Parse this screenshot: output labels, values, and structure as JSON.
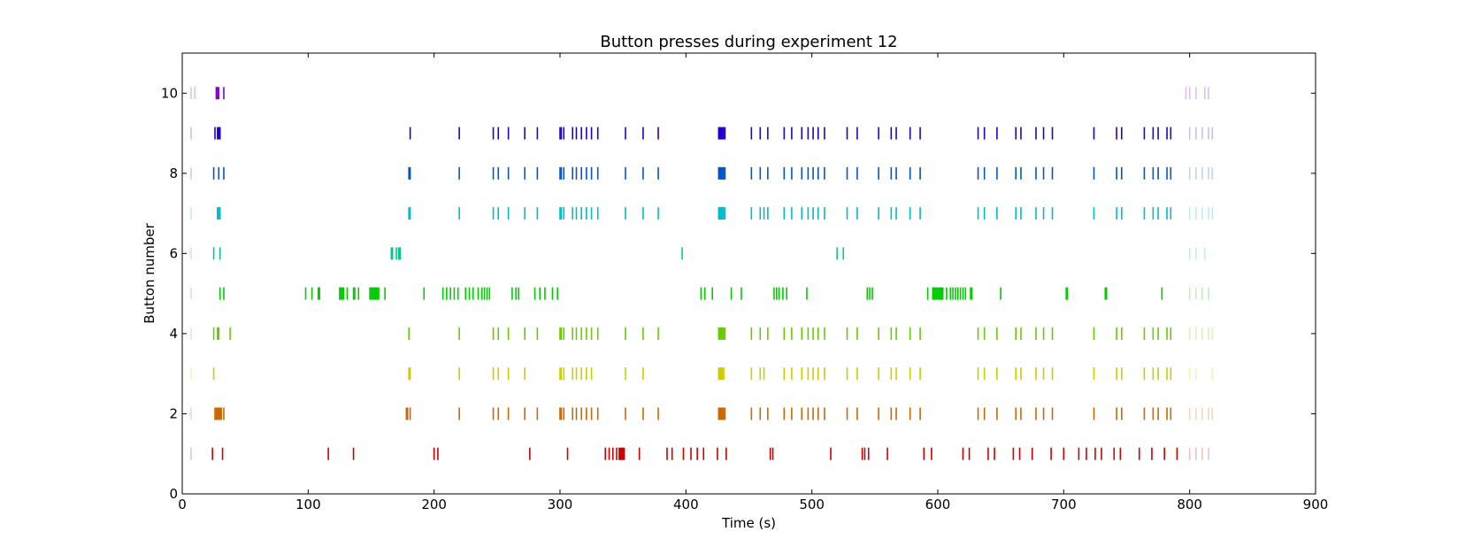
{
  "chart_data": {
    "type": "event_raster",
    "title": "Button presses during experiment 12",
    "xlabel": "Time (s)",
    "ylabel": "Button number",
    "xlim": [
      0,
      900
    ],
    "ylim": [
      0,
      11
    ],
    "xticks": [
      0,
      100,
      200,
      300,
      400,
      500,
      600,
      700,
      800,
      900
    ],
    "yticks": [
      0,
      2,
      4,
      6,
      8,
      10
    ],
    "grid": false,
    "series": [
      {
        "button": 1,
        "color": "#cc0000",
        "times": [
          7,
          24,
          32,
          116,
          136,
          200,
          203,
          276,
          306,
          336,
          339,
          342,
          345,
          347,
          348,
          349,
          350,
          351,
          363,
          385,
          389,
          398,
          404,
          409,
          414,
          425,
          432,
          467,
          469,
          515,
          540,
          542,
          545,
          560,
          589,
          595,
          620,
          625,
          640,
          645,
          660,
          665,
          675,
          690,
          700,
          712,
          718,
          725,
          730,
          740,
          745,
          760,
          770,
          780,
          790,
          800,
          805,
          810,
          815
        ]
      },
      {
        "button": 2,
        "color": "#cc6600",
        "times": [
          7,
          26,
          27,
          28,
          29,
          30,
          31,
          33,
          178,
          179,
          181,
          220,
          247,
          251,
          259,
          272,
          282,
          300,
          301,
          303,
          310,
          313,
          317,
          321,
          325,
          330,
          352,
          366,
          378,
          426,
          427,
          428,
          429,
          430,
          431,
          452,
          459,
          465,
          478,
          484,
          492,
          497,
          501,
          505,
          510,
          528,
          536,
          553,
          563,
          567,
          578,
          586,
          632,
          637,
          647,
          662,
          666,
          678,
          684,
          691,
          724,
          742,
          746,
          764,
          771,
          775,
          782,
          785,
          800,
          805,
          810,
          815,
          818
        ]
      },
      {
        "button": 3,
        "color": "#cccc00",
        "times": [
          7,
          25,
          180,
          181,
          220,
          247,
          251,
          259,
          272,
          300,
          301,
          303,
          310,
          313,
          317,
          321,
          325,
          352,
          366,
          426,
          427,
          428,
          429,
          430,
          452,
          459,
          462,
          478,
          484,
          492,
          497,
          501,
          505,
          510,
          528,
          536,
          553,
          563,
          567,
          578,
          586,
          632,
          637,
          647,
          662,
          666,
          678,
          684,
          691,
          724,
          742,
          746,
          764,
          771,
          775,
          782,
          785,
          800,
          805,
          818
        ]
      },
      {
        "button": 4,
        "color": "#66cc00",
        "times": [
          7,
          25,
          28,
          29,
          38,
          180,
          220,
          247,
          251,
          259,
          272,
          282,
          300,
          301,
          303,
          310,
          313,
          317,
          321,
          325,
          330,
          352,
          366,
          378,
          426,
          427,
          428,
          429,
          430,
          431,
          452,
          459,
          465,
          478,
          484,
          492,
          497,
          501,
          505,
          510,
          528,
          536,
          553,
          563,
          567,
          578,
          586,
          632,
          637,
          647,
          662,
          666,
          678,
          684,
          691,
          724,
          742,
          746,
          764,
          771,
          775,
          782,
          785,
          800,
          805,
          810,
          815,
          818
        ]
      },
      {
        "button": 5,
        "color": "#00cc00",
        "times": [
          7,
          30,
          33,
          98,
          103,
          108,
          109,
          125,
          126,
          127,
          128,
          131,
          136,
          137,
          140,
          149,
          150,
          151,
          152,
          153,
          154,
          155,
          156,
          161,
          192,
          207,
          210,
          213,
          216,
          219,
          225,
          228,
          231,
          235,
          238,
          240,
          242,
          244,
          262,
          265,
          267,
          280,
          284,
          288,
          294,
          298,
          412,
          415,
          421,
          436,
          444,
          470,
          472,
          474,
          477,
          480,
          496,
          544,
          546,
          548,
          592,
          596,
          597,
          598,
          599,
          600,
          601,
          602,
          603,
          604,
          607,
          610,
          612,
          614,
          616,
          618,
          620,
          622,
          626,
          627,
          650,
          702,
          703,
          733,
          734,
          778,
          800,
          805,
          810,
          815
        ]
      },
      {
        "button": 6,
        "color": "#00cc88",
        "times": [
          7,
          25,
          30,
          166,
          167,
          170,
          172,
          173,
          397,
          520,
          525,
          800,
          805,
          812
        ]
      },
      {
        "button": 7,
        "color": "#00bbcc",
        "times": [
          7,
          28,
          29,
          30,
          180,
          181,
          220,
          247,
          251,
          259,
          272,
          282,
          300,
          301,
          303,
          310,
          313,
          317,
          321,
          325,
          330,
          352,
          366,
          378,
          426,
          427,
          428,
          429,
          430,
          431,
          452,
          459,
          462,
          465,
          478,
          484,
          492,
          497,
          501,
          505,
          510,
          528,
          536,
          553,
          563,
          567,
          578,
          586,
          632,
          637,
          647,
          662,
          666,
          678,
          684,
          691,
          724,
          742,
          746,
          764,
          771,
          775,
          782,
          785,
          800,
          805,
          810,
          815,
          818
        ]
      },
      {
        "button": 8,
        "color": "#0055cc",
        "times": [
          7,
          25,
          29,
          33,
          180,
          181,
          220,
          247,
          251,
          259,
          272,
          282,
          300,
          301,
          303,
          310,
          313,
          317,
          321,
          325,
          330,
          352,
          366,
          378,
          426,
          427,
          428,
          429,
          430,
          431,
          452,
          459,
          465,
          478,
          484,
          492,
          497,
          501,
          505,
          510,
          528,
          536,
          553,
          563,
          567,
          578,
          586,
          632,
          637,
          647,
          662,
          666,
          678,
          684,
          691,
          724,
          742,
          746,
          764,
          771,
          775,
          782,
          785,
          800,
          805,
          810,
          815,
          818
        ]
      },
      {
        "button": 9,
        "color": "#2200cc",
        "times": [
          7,
          26,
          28,
          29,
          30,
          181,
          220,
          247,
          251,
          259,
          272,
          282,
          300,
          301,
          303,
          310,
          313,
          317,
          321,
          325,
          330,
          352,
          366,
          378,
          426,
          427,
          428,
          429,
          430,
          431,
          452,
          459,
          465,
          478,
          484,
          492,
          497,
          501,
          505,
          510,
          528,
          536,
          553,
          563,
          567,
          578,
          586,
          632,
          637,
          647,
          662,
          666,
          678,
          684,
          691,
          724,
          742,
          746,
          764,
          771,
          775,
          782,
          785,
          800,
          805,
          810,
          815,
          818
        ]
      },
      {
        "button": 10,
        "color": "#8800cc",
        "times": [
          7,
          10,
          27,
          28,
          29,
          33,
          797,
          800,
          805,
          812,
          815
        ]
      }
    ]
  }
}
